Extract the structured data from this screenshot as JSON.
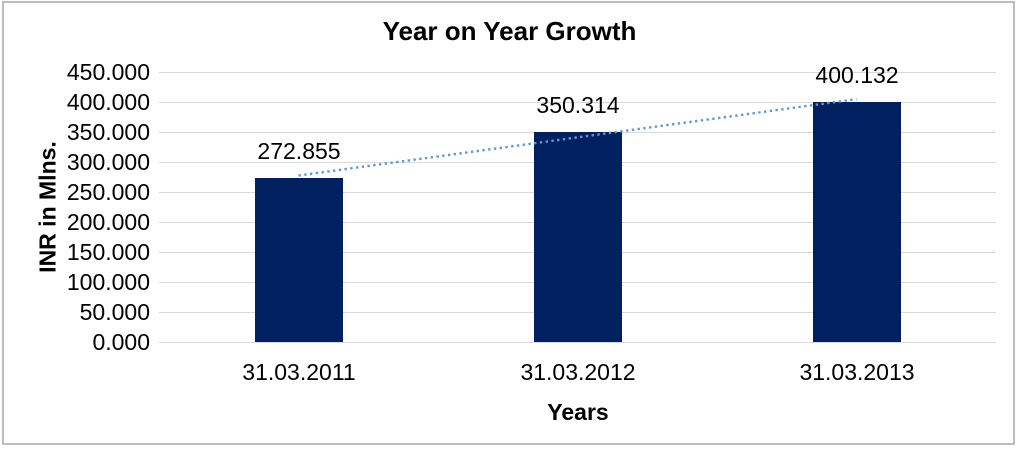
{
  "frame": {
    "border_color": "#bdbdbd",
    "background": "#ffffff"
  },
  "chart_data": {
    "type": "bar",
    "title": "Year on Year Growth",
    "xlabel": "Years",
    "ylabel": "INR in Mlns.",
    "categories": [
      "31.03.2011",
      "31.03.2012",
      "31.03.2013"
    ],
    "values": [
      272.855,
      350.314,
      400.132
    ],
    "data_labels": [
      "272.855",
      "350.314",
      "400.132"
    ],
    "ylim": [
      0,
      450
    ],
    "ytick_step": 50,
    "ytick_labels": [
      "450.000",
      "400.000",
      "350.000",
      "300.000",
      "250.000",
      "200.000",
      "150.000",
      "100.000",
      "50.000",
      "0.000"
    ],
    "grid": true,
    "legend_position": "none",
    "bar_color": "#002060",
    "gridline_color": "#d9d9d9",
    "text_color": "#000000",
    "trendline": {
      "type": "linear",
      "style": "dotted",
      "color": "#5b9bd5"
    }
  }
}
